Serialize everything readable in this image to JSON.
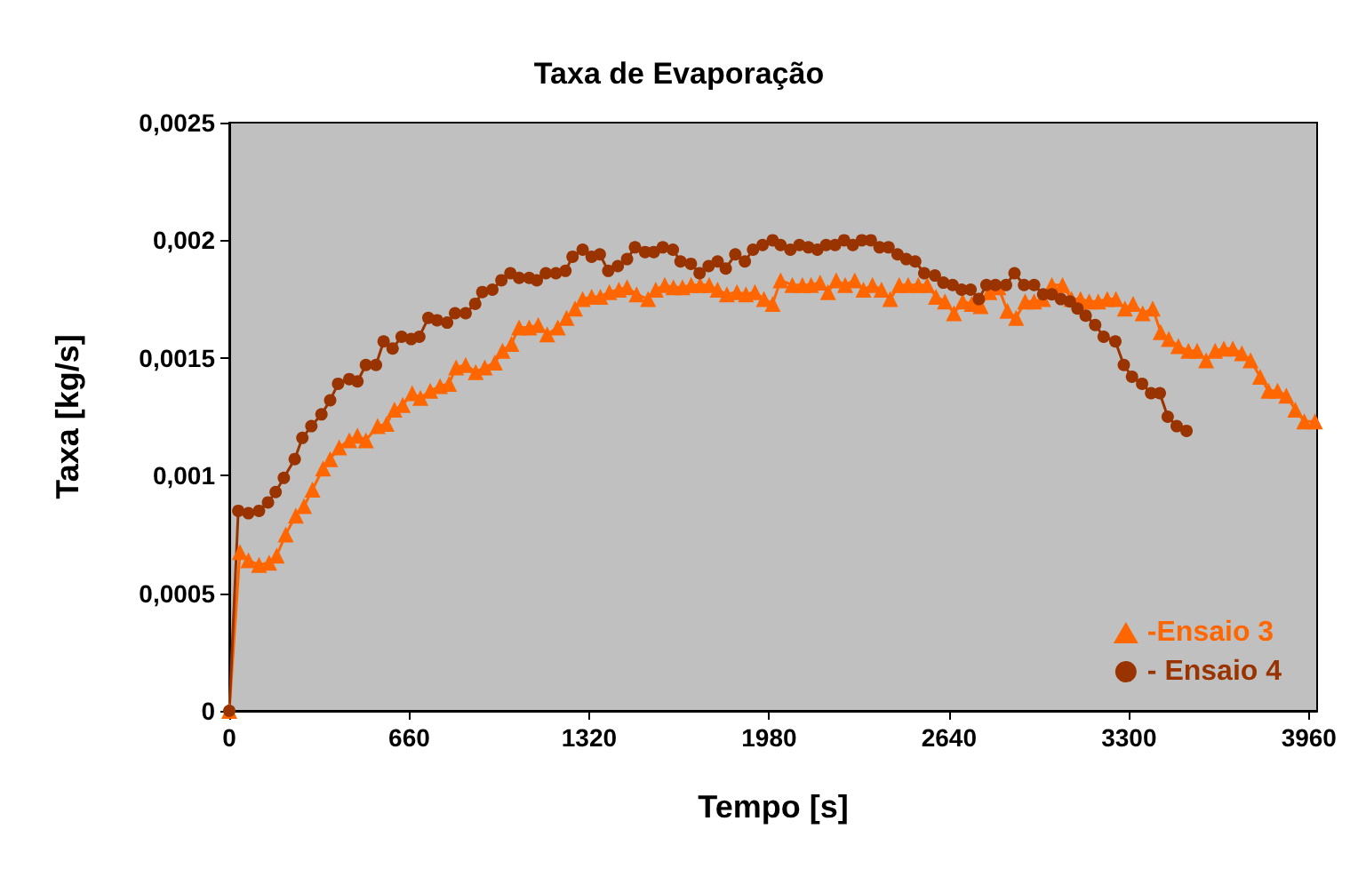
{
  "chart_data": {
    "type": "line",
    "title": "Taxa de Evaporação",
    "xlabel": "Tempo [s]",
    "ylabel": "Taxa [kg/s]",
    "xlim": [
      0,
      3990
    ],
    "ylim": [
      0,
      0.0025
    ],
    "xticks": [
      0,
      660,
      1320,
      1980,
      2640,
      3300,
      3960
    ],
    "yticks": [
      {
        "value": 0,
        "label": "0"
      },
      {
        "value": 0.0005,
        "label": "0,0005"
      },
      {
        "value": 0.001,
        "label": "0,001"
      },
      {
        "value": 0.0015,
        "label": "0,0015"
      },
      {
        "value": 0.002,
        "label": "0,002"
      },
      {
        "value": 0.0025,
        "label": "0,0025"
      }
    ],
    "grid": false,
    "legend": "bottom right",
    "line_style": "solid",
    "series": [
      {
        "name": "-Ensaio 3",
        "color": "#ff6600",
        "marker": "triangle",
        "x": [
          0,
          39,
          70,
          109,
          146,
          174,
          207,
          244,
          274,
          305,
          344,
          370,
          403,
          440,
          470,
          501,
          544,
          577,
          606,
          636,
          671,
          701,
          737,
          773,
          806,
          832,
          867,
          904,
          937,
          974,
          1002,
          1035,
          1063,
          1100,
          1133,
          1166,
          1205,
          1237,
          1268,
          1296,
          1329,
          1361,
          1394,
          1429,
          1459,
          1494,
          1536,
          1564,
          1597,
          1629,
          1662,
          1694,
          1727,
          1760,
          1791,
          1825,
          1862,
          1895,
          1928,
          1961,
          1993,
          2022,
          2065,
          2102,
          2134,
          2167,
          2196,
          2226,
          2259,
          2294,
          2326,
          2359,
          2392,
          2424,
          2457,
          2490,
          2527,
          2560,
          2592,
          2625,
          2658,
          2690,
          2723,
          2756,
          2788,
          2821,
          2854,
          2886,
          2919,
          2952,
          2985,
          3017,
          3056,
          3089,
          3122,
          3154,
          3187,
          3220,
          3252,
          3285,
          3315,
          3350,
          3387,
          3416,
          3446,
          3481,
          3518,
          3550,
          3583,
          3616,
          3648,
          3681,
          3714,
          3746,
          3781,
          3812,
          3845,
          3877,
          3910,
          3943,
          3982
        ],
        "values": [
          0,
          0.000675,
          0.00064,
          0.00062,
          0.00063,
          0.00066,
          0.00075,
          0.00083,
          0.00087,
          0.00094,
          0.00103,
          0.00107,
          0.00112,
          0.00115,
          0.00117,
          0.00115,
          0.00121,
          0.00122,
          0.00128,
          0.0013,
          0.00135,
          0.00133,
          0.00136,
          0.00138,
          0.00139,
          0.00146,
          0.00147,
          0.00144,
          0.00146,
          0.00148,
          0.00153,
          0.00156,
          0.00163,
          0.00163,
          0.00164,
          0.0016,
          0.00163,
          0.00167,
          0.00171,
          0.00175,
          0.00176,
          0.00176,
          0.00178,
          0.00179,
          0.0018,
          0.00177,
          0.00175,
          0.00179,
          0.00181,
          0.0018,
          0.0018,
          0.00181,
          0.00181,
          0.00181,
          0.00179,
          0.00177,
          0.00178,
          0.00177,
          0.00178,
          0.00175,
          0.00173,
          0.00183,
          0.00181,
          0.00181,
          0.00181,
          0.00182,
          0.00178,
          0.00183,
          0.00181,
          0.00183,
          0.00179,
          0.00181,
          0.00179,
          0.00175,
          0.00181,
          0.00181,
          0.00181,
          0.00181,
          0.00176,
          0.00174,
          0.00169,
          0.00174,
          0.00173,
          0.00172,
          0.00178,
          0.0018,
          0.0017,
          0.00167,
          0.00174,
          0.00174,
          0.00175,
          0.00181,
          0.00181,
          0.00175,
          0.00175,
          0.00174,
          0.00174,
          0.00175,
          0.00175,
          0.00171,
          0.00173,
          0.00169,
          0.00171,
          0.00161,
          0.00158,
          0.00155,
          0.00153,
          0.00153,
          0.00149,
          0.00153,
          0.00154,
          0.00154,
          0.00152,
          0.00149,
          0.00142,
          0.00136,
          0.00136,
          0.00134,
          0.00128,
          0.00123,
          0.00123
        ]
      },
      {
        "name": "- Ensaio 4",
        "color": "#993300",
        "marker": "circle",
        "x": [
          0,
          33,
          70,
          109,
          142,
          170,
          200,
          240,
          268,
          301,
          338,
          370,
          399,
          440,
          470,
          501,
          538,
          566,
          599,
          632,
          667,
          697,
          730,
          762,
          799,
          828,
          867,
          902,
          928,
          965,
          998,
          1031,
          1063,
          1100,
          1128,
          1161,
          1198,
          1233,
          1259,
          1296,
          1329,
          1359,
          1390,
          1425,
          1459,
          1488,
          1525,
          1557,
          1590,
          1627,
          1655,
          1693,
          1725,
          1758,
          1791,
          1821,
          1856,
          1891,
          1921,
          1956,
          1993,
          2022,
          2058,
          2091,
          2124,
          2157,
          2189,
          2222,
          2255,
          2287,
          2320,
          2353,
          2385,
          2418,
          2451,
          2483,
          2516,
          2549,
          2588,
          2619,
          2653,
          2686,
          2719,
          2749,
          2777,
          2810,
          2849,
          2880,
          2915,
          2952,
          2985,
          3017,
          3050,
          3083,
          3111,
          3141,
          3176,
          3207,
          3250,
          3281,
          3311,
          3348,
          3381,
          3413,
          3442,
          3475,
          3511
        ],
        "values": [
          0,
          0.00085,
          0.00084,
          0.00085,
          0.000886,
          0.00093,
          0.00099,
          0.00107,
          0.00116,
          0.00121,
          0.00126,
          0.00132,
          0.00139,
          0.00141,
          0.0014,
          0.00147,
          0.00147,
          0.00157,
          0.00154,
          0.00159,
          0.00158,
          0.00159,
          0.00167,
          0.00166,
          0.00165,
          0.00169,
          0.00169,
          0.00173,
          0.00178,
          0.00179,
          0.00183,
          0.00186,
          0.00184,
          0.00184,
          0.00183,
          0.00186,
          0.00186,
          0.00187,
          0.00193,
          0.00196,
          0.00193,
          0.00194,
          0.00187,
          0.00189,
          0.00192,
          0.00197,
          0.00195,
          0.00195,
          0.00197,
          0.00196,
          0.00191,
          0.0019,
          0.00186,
          0.00189,
          0.00191,
          0.00188,
          0.00194,
          0.00191,
          0.00196,
          0.00198,
          0.002,
          0.00198,
          0.00196,
          0.00198,
          0.00197,
          0.00196,
          0.00198,
          0.00198,
          0.002,
          0.00198,
          0.002,
          0.002,
          0.00197,
          0.00197,
          0.00194,
          0.00192,
          0.00191,
          0.00186,
          0.00185,
          0.00182,
          0.00181,
          0.00179,
          0.00179,
          0.00175,
          0.00181,
          0.00181,
          0.00181,
          0.00186,
          0.00181,
          0.00181,
          0.00177,
          0.00177,
          0.00175,
          0.00174,
          0.00171,
          0.00168,
          0.00164,
          0.00159,
          0.00157,
          0.00147,
          0.00142,
          0.00139,
          0.00135,
          0.00135,
          0.00125,
          0.00121,
          0.00119
        ]
      }
    ]
  }
}
